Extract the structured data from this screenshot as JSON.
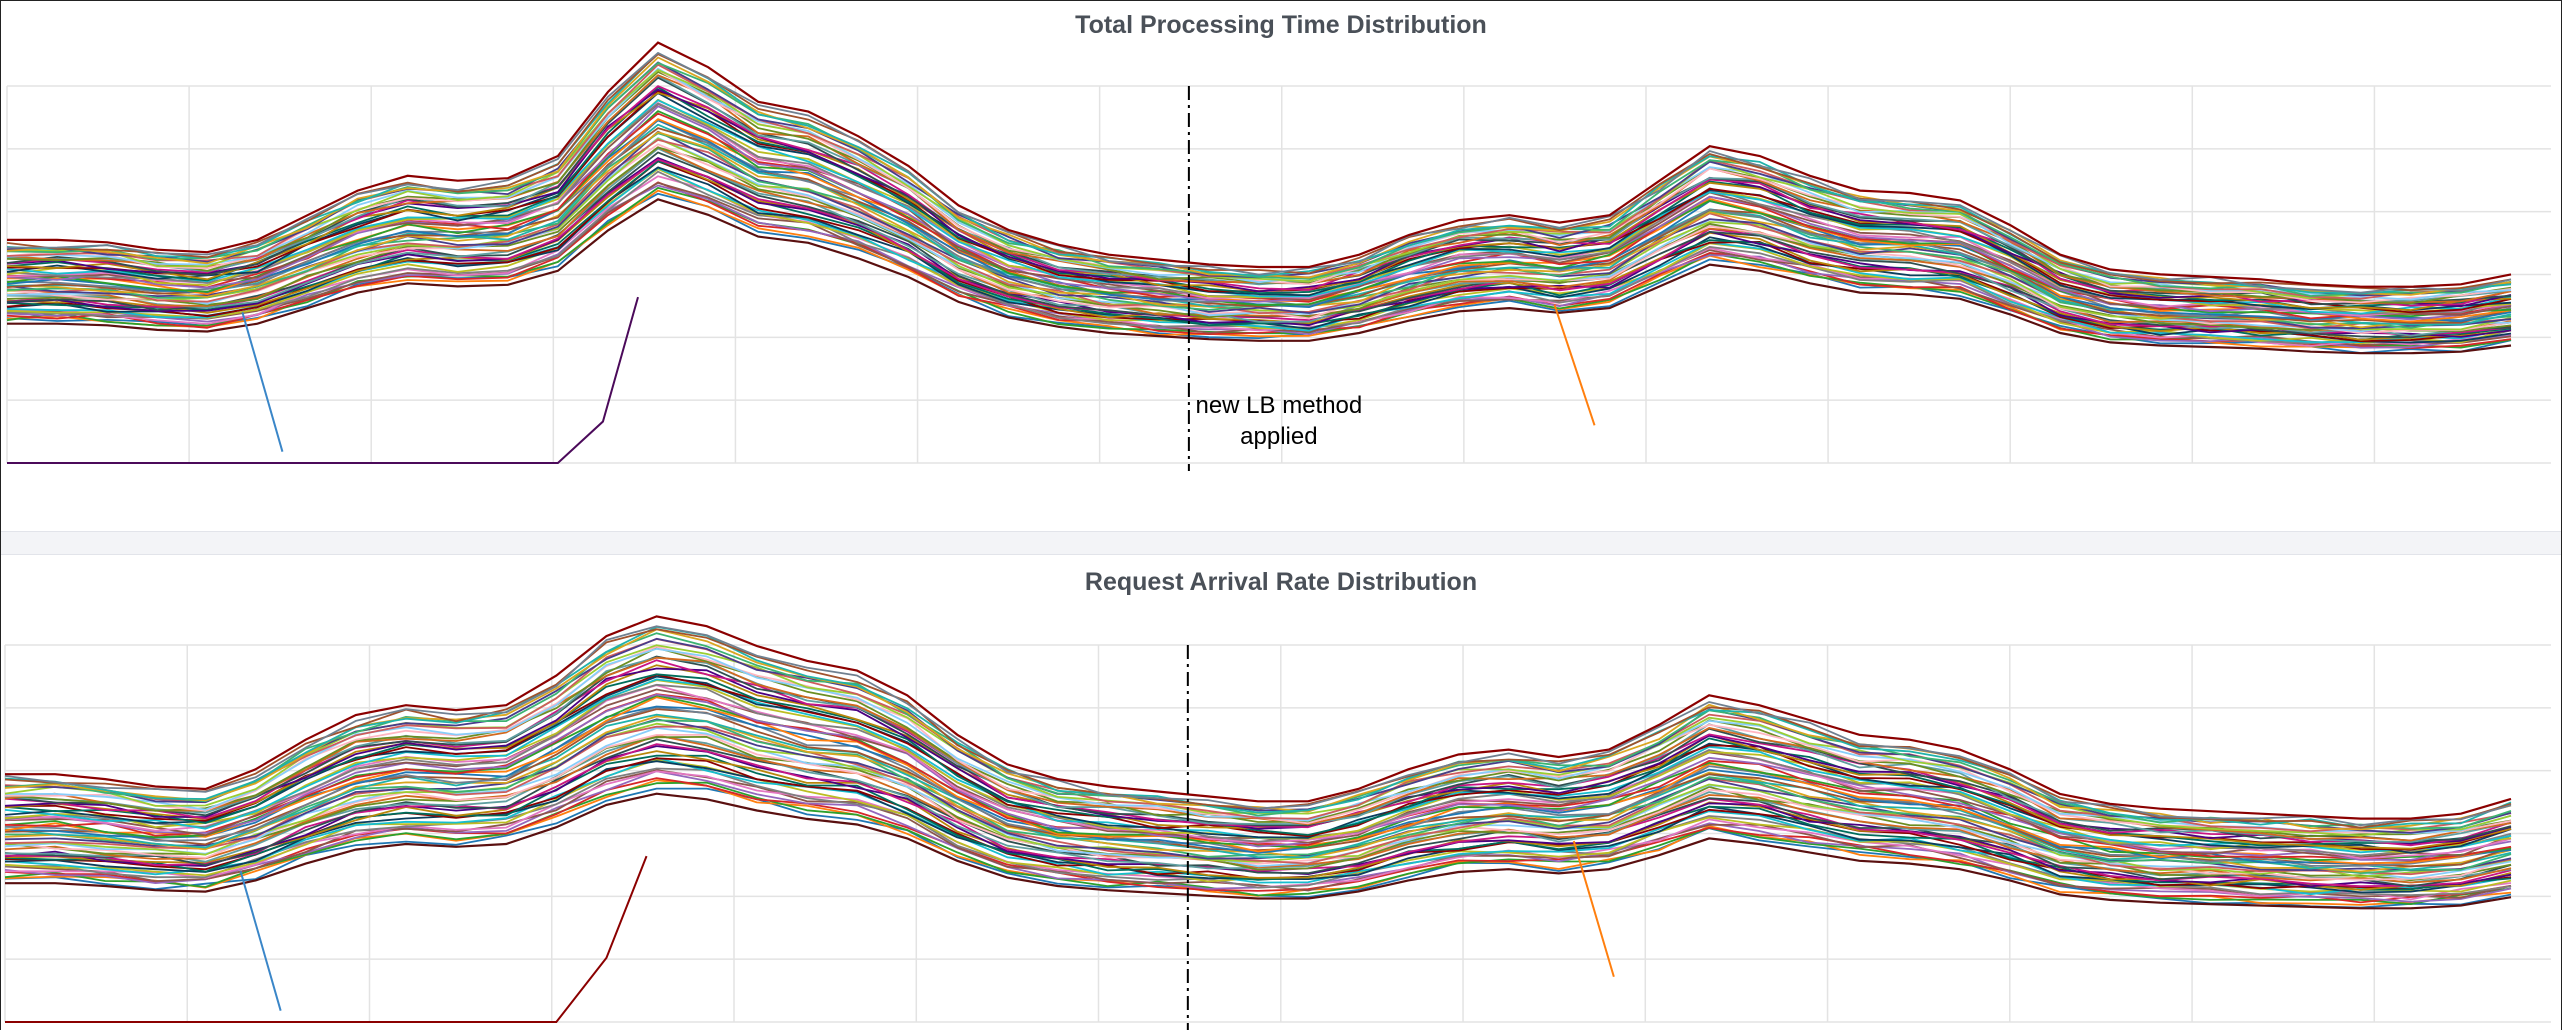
{
  "chart_data": [
    {
      "type": "line",
      "title": "Total Processing Time Distribution",
      "xlabel": "",
      "ylabel": "",
      "x_range": [
        0,
        51
      ],
      "ylim": [
        0,
        100
      ],
      "grid": true,
      "legend": "none",
      "series_count": 60,
      "base_profile": [
        45,
        45,
        44.5,
        43,
        42.5,
        45,
        50,
        55,
        58,
        57,
        57.5,
        62,
        75,
        85,
        80,
        73,
        71,
        66,
        60,
        52,
        47,
        44,
        42,
        41,
        40,
        39.5,
        39.5,
        42,
        46,
        49,
        50,
        48.5,
        50,
        57,
        64,
        62,
        58,
        55,
        54.5,
        53,
        48,
        42,
        39,
        38,
        37.5,
        37,
        36,
        35.5,
        35.5,
        36,
        38
      ],
      "series_spread": {
        "low": -9,
        "high": 17
      },
      "annotations": [
        {
          "text_lines": [
            "new LB method",
            "applied"
          ],
          "x": 23.6
        }
      ],
      "outliers": [
        {
          "x_from": 4.7,
          "x_to": 5.5,
          "y_from": 40,
          "y_to": 3
        },
        {
          "x_from": 30.9,
          "x_to": 31.7,
          "y_from": 42,
          "y_to": 10
        },
        {
          "x_from": 0,
          "x_to": 11,
          "y_const": 0,
          "then_to": [
            [
              11.9,
              11
            ],
            [
              12.6,
              44
            ]
          ]
        }
      ]
    },
    {
      "type": "line",
      "title": "Request Arrival Rate Distribution",
      "xlabel": "",
      "ylabel": "",
      "x_range": [
        0,
        51
      ],
      "ylim": [
        0,
        100
      ],
      "grid": true,
      "legend": "none",
      "series_count": 60,
      "base_profile": [
        50,
        50,
        49,
        47.5,
        47,
        51,
        57,
        62,
        64,
        63,
        64,
        70,
        78,
        82,
        80,
        76,
        73,
        71,
        66,
        58,
        52,
        49,
        47.5,
        46.5,
        45.5,
        44.5,
        44.5,
        47,
        51,
        54,
        55,
        53.5,
        55,
        60,
        66,
        64,
        61,
        58,
        57,
        55,
        51,
        46,
        44,
        43,
        42.5,
        42,
        41.5,
        41,
        41,
        42,
        45
      ],
      "series_spread": {
        "low": -14,
        "high": 17
      },
      "annotations": [
        {
          "text_lines": [],
          "x": 23.6
        }
      ],
      "outliers": [
        {
          "x_from": 4.7,
          "x_to": 5.5,
          "y_from": 40,
          "y_to": 3
        },
        {
          "x_from": 31.3,
          "x_to": 32.1,
          "y_from": 48,
          "y_to": 12
        },
        {
          "x_from": 0,
          "x_to": 11,
          "y_const": 0,
          "then_to": [
            [
              12,
              17
            ],
            [
              12.8,
              44
            ]
          ]
        }
      ]
    }
  ],
  "palette": [
    "#1f77b4",
    "#ff7f0e",
    "#2ca02c",
    "#d62728",
    "#9467bd",
    "#8c564b",
    "#e377c2",
    "#7f7f7f",
    "#bcbd22",
    "#17becf",
    "#0b3d5c",
    "#8b0000",
    "#006d5b",
    "#b8860b",
    "#4b0082",
    "#c71585",
    "#2f4f4f",
    "#5f9ea0",
    "#d2691e",
    "#6b8e23",
    "#ffb6c1",
    "#87cefa",
    "#9acd32",
    "#cd5c5c",
    "#483d8b",
    "#3cb371",
    "#daa520",
    "#20b2aa",
    "#a0522d",
    "#708090"
  ]
}
